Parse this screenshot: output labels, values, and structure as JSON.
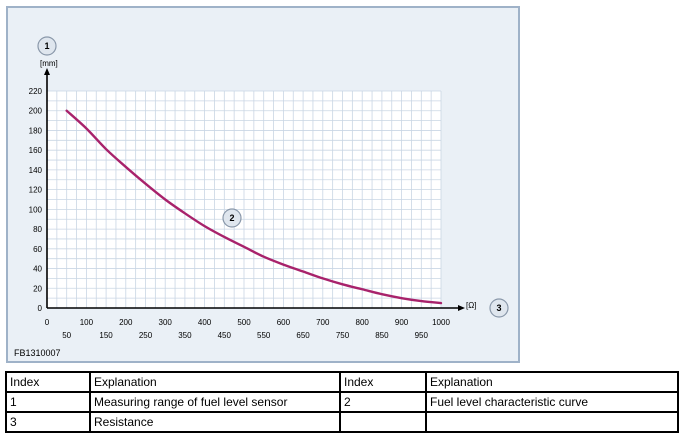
{
  "chart_data": {
    "type": "line",
    "figure_code": "FB1310007",
    "ylabel": "[mm]",
    "xlabel": "[Ω]",
    "ylim": [
      0,
      220
    ],
    "xlim": [
      0,
      1000
    ],
    "grid": true,
    "y_ticks": [
      "0",
      "20",
      "40",
      "60",
      "80",
      "100",
      "120",
      "140",
      "160",
      "180",
      "200",
      "220"
    ],
    "x_ticks_upper": [
      "0",
      "100",
      "200",
      "300",
      "400",
      "500",
      "600",
      "700",
      "800",
      "900",
      "1000"
    ],
    "x_ticks_lower": [
      "50",
      "150",
      "250",
      "350",
      "450",
      "550",
      "650",
      "750",
      "850",
      "950"
    ],
    "callouts": {
      "y_axis": "1",
      "curve": "2",
      "x_axis": "3"
    },
    "series": [
      {
        "color": "#a8226b",
        "x": [
          50,
          100,
          150,
          200,
          250,
          300,
          350,
          400,
          450,
          500,
          550,
          600,
          650,
          700,
          750,
          800,
          850,
          900,
          950,
          1000
        ],
        "y": [
          200,
          182,
          161,
          143,
          126,
          110,
          96,
          83,
          72,
          62,
          52,
          44,
          37,
          30,
          24,
          19,
          14,
          10,
          7,
          5
        ]
      }
    ]
  },
  "legend_table": {
    "headers": [
      "Index",
      "Explanation",
      "Index",
      "Explanation"
    ],
    "rows": [
      [
        "1",
        "Measuring range of fuel level sensor",
        "2",
        "Fuel level characteristic curve"
      ],
      [
        "3",
        "Resistance",
        "",
        ""
      ]
    ]
  }
}
